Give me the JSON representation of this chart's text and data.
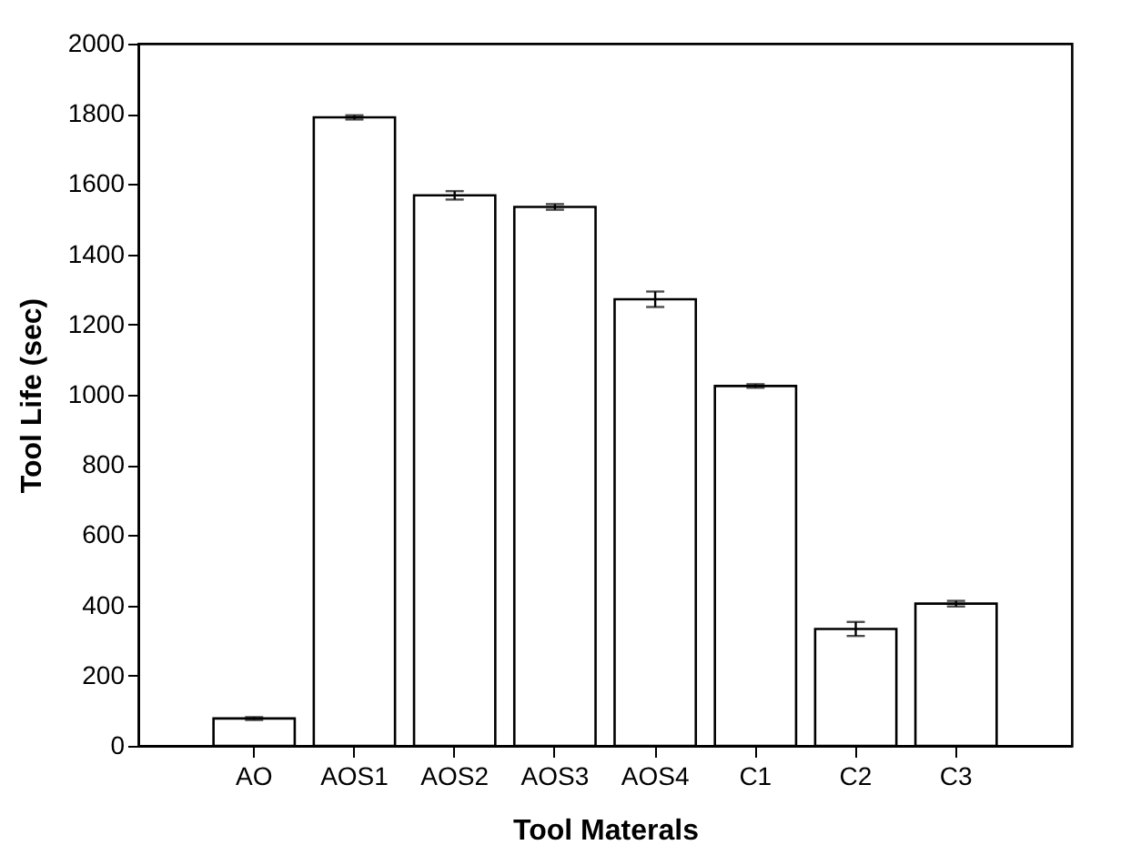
{
  "chart_data": {
    "type": "bar",
    "xlabel": "Tool Materals",
    "ylabel": "Tool Life (sec)",
    "categories": [
      "AO",
      "AOS1",
      "AOS2",
      "AOS3",
      "AOS4",
      "C1",
      "C2",
      "C3"
    ],
    "series": [
      {
        "color": "#ffffff",
        "values": [
          78,
          1790,
          1568,
          1535,
          1272,
          1025,
          333,
          405
        ],
        "errors": [
          4,
          6,
          12,
          8,
          22,
          5,
          20,
          8
        ]
      }
    ],
    "ylim": [
      0,
      2000
    ],
    "yticks": [
      0,
      200,
      400,
      600,
      800,
      1000,
      1200,
      1400,
      1600,
      1800,
      2000
    ],
    "grid": false
  }
}
